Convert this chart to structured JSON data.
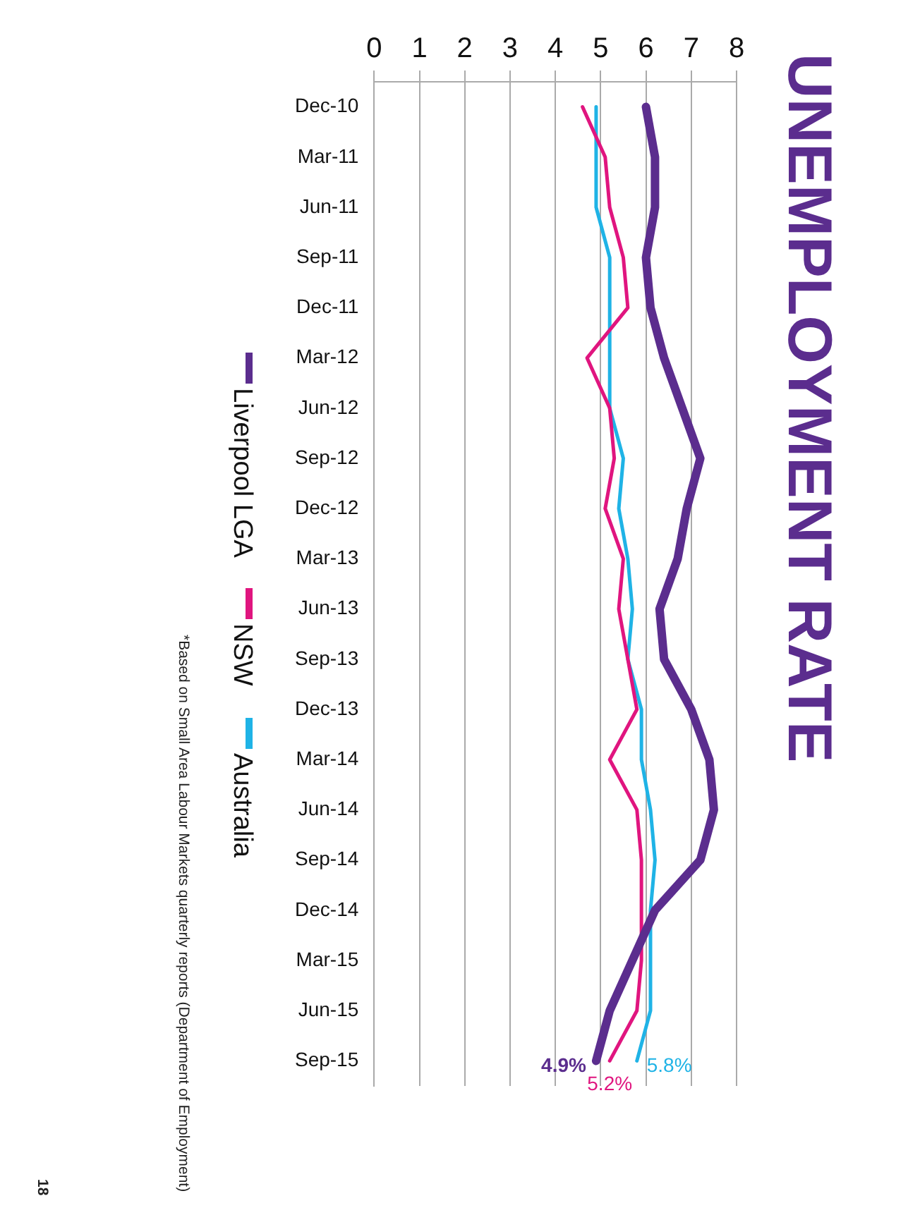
{
  "chart_data": {
    "type": "line",
    "title": "UNEMPLOYMENT RATE",
    "categories": [
      "Dec-10",
      "Mar-11",
      "Jun-11",
      "Sep-11",
      "Dec-11",
      "Mar-12",
      "Jun-12",
      "Sep-12",
      "Dec-12",
      "Mar-13",
      "Jun-13",
      "Sep-13",
      "Dec-13",
      "Mar-14",
      "Jun-14",
      "Sep-14",
      "Dec-14",
      "Mar-15",
      "Jun-15",
      "Sep-15"
    ],
    "series": [
      {
        "name": "Liverpool LGA",
        "color": "#5b2d8e",
        "values": [
          6.0,
          6.2,
          6.2,
          6.0,
          6.1,
          6.4,
          6.8,
          7.2,
          6.9,
          6.7,
          6.3,
          6.4,
          7.0,
          7.4,
          7.5,
          7.2,
          6.2,
          5.7,
          5.2,
          4.9
        ],
        "value_labels": [
          null,
          null,
          null,
          null,
          null,
          null,
          null,
          null,
          null,
          null,
          null,
          null,
          null,
          null,
          null,
          null,
          null,
          null,
          null,
          "4.9%"
        ]
      },
      {
        "name": "NSW",
        "color": "#e0157f",
        "values": [
          4.6,
          5.1,
          5.2,
          5.5,
          5.6,
          4.7,
          5.2,
          5.3,
          5.1,
          5.5,
          5.4,
          5.6,
          5.8,
          5.2,
          5.8,
          5.9,
          5.9,
          5.9,
          5.8,
          5.2
        ],
        "value_labels": [
          null,
          null,
          null,
          null,
          null,
          null,
          null,
          null,
          null,
          null,
          null,
          null,
          null,
          null,
          null,
          null,
          null,
          null,
          null,
          "5.2%"
        ]
      },
      {
        "name": "Australia",
        "color": "#1fb3e6",
        "values": [
          4.9,
          4.9,
          4.9,
          5.2,
          5.2,
          5.2,
          5.2,
          5.5,
          5.4,
          5.6,
          5.7,
          5.6,
          5.9,
          5.9,
          6.1,
          6.2,
          6.1,
          6.1,
          6.1,
          5.8
        ],
        "value_labels": [
          null,
          null,
          null,
          null,
          null,
          null,
          null,
          null,
          null,
          null,
          null,
          null,
          null,
          null,
          null,
          null,
          null,
          null,
          null,
          "5.8%"
        ]
      }
    ],
    "orientation": "horizontal",
    "xlim": [
      0,
      8
    ],
    "xticks": [
      0,
      1,
      2,
      3,
      4,
      5,
      6,
      7,
      8
    ],
    "grid": "x",
    "legend": "bottom",
    "marker": "none",
    "line_style": "solid",
    "annotations": [
      "*Based on Small Area Labour  Markets quarterly reports  (Department of Employment)",
      "18"
    ]
  }
}
